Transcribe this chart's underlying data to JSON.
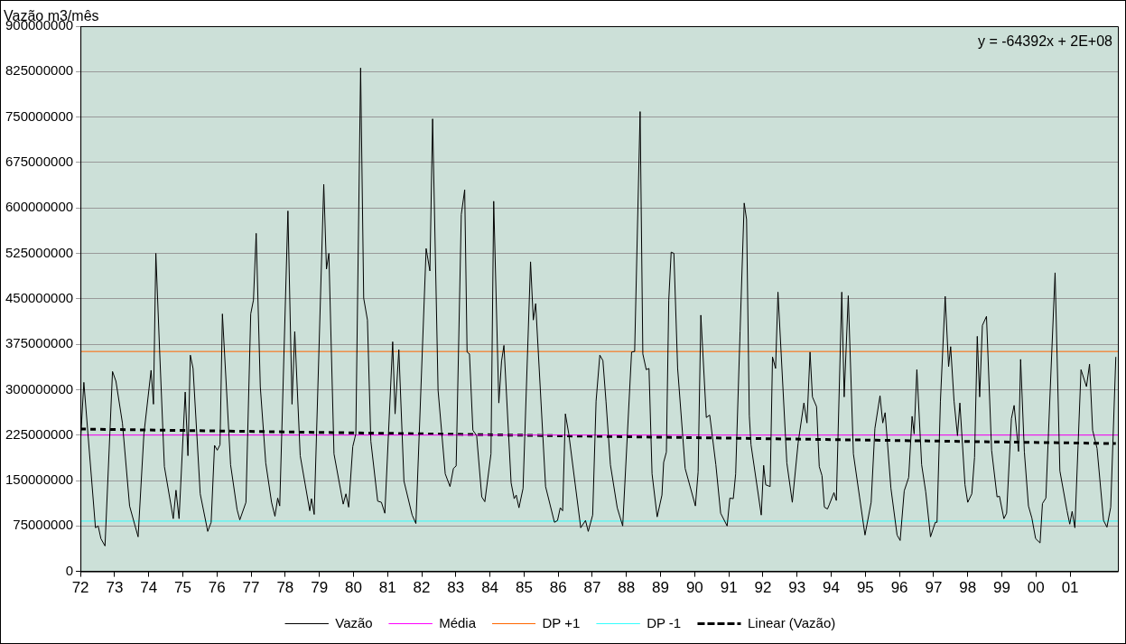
{
  "chart_data": {
    "type": "line",
    "ylabel": "Vazão m3/mês",
    "annotations": [
      "y = -64392x + 2E+08"
    ],
    "xlim": [
      1972,
      2002.4
    ],
    "ylim": [
      0,
      900000000
    ],
    "xticks": [
      {
        "value": 1972,
        "label": "72"
      },
      {
        "value": 1973,
        "label": "73"
      },
      {
        "value": 1974,
        "label": "74"
      },
      {
        "value": 1975,
        "label": "75"
      },
      {
        "value": 1976,
        "label": "76"
      },
      {
        "value": 1977,
        "label": "77"
      },
      {
        "value": 1978,
        "label": "78"
      },
      {
        "value": 1979,
        "label": "79"
      },
      {
        "value": 1980,
        "label": "80"
      },
      {
        "value": 1981,
        "label": "81"
      },
      {
        "value": 1982,
        "label": "82"
      },
      {
        "value": 1983,
        "label": "83"
      },
      {
        "value": 1984,
        "label": "84"
      },
      {
        "value": 1985,
        "label": "85"
      },
      {
        "value": 1986,
        "label": "86"
      },
      {
        "value": 1987,
        "label": "87"
      },
      {
        "value": 1988,
        "label": "88"
      },
      {
        "value": 1989,
        "label": "89"
      },
      {
        "value": 1990,
        "label": "90"
      },
      {
        "value": 1991,
        "label": "91"
      },
      {
        "value": 1992,
        "label": "92"
      },
      {
        "value": 1993,
        "label": "93"
      },
      {
        "value": 1994,
        "label": "94"
      },
      {
        "value": 1995,
        "label": "95"
      },
      {
        "value": 1996,
        "label": "96"
      },
      {
        "value": 1997,
        "label": "97"
      },
      {
        "value": 1998,
        "label": "98"
      },
      {
        "value": 1999,
        "label": "99"
      },
      {
        "value": 2000,
        "label": "00"
      },
      {
        "value": 2001,
        "label": "01"
      }
    ],
    "yticks": [
      0,
      75000000,
      150000000,
      225000000,
      300000000,
      375000000,
      450000000,
      525000000,
      600000000,
      675000000,
      750000000,
      825000000,
      900000000
    ],
    "grid": "y",
    "legend": "bottom",
    "series": [
      {
        "name": "Vazão",
        "color": "#000000",
        "line_style": "solid",
        "x": [
          1972.0,
          1972.1,
          1972.44,
          1972.52,
          1972.6,
          1972.72,
          1972.94,
          1973.04,
          1973.23,
          1973.44,
          1973.69,
          1973.86,
          1974.07,
          1974.14,
          1974.21,
          1974.32,
          1974.46,
          1974.72,
          1974.8,
          1974.89,
          1975.07,
          1975.15,
          1975.22,
          1975.3,
          1975.51,
          1975.73,
          1975.83,
          1975.93,
          1976.01,
          1976.09,
          1976.16,
          1976.4,
          1976.59,
          1976.67,
          1976.85,
          1976.99,
          1977.07,
          1977.15,
          1977.27,
          1977.43,
          1977.6,
          1977.7,
          1977.78,
          1977.84,
          1978.08,
          1978.2,
          1978.28,
          1978.44,
          1978.72,
          1978.77,
          1978.85,
          1979.13,
          1979.21,
          1979.28,
          1979.43,
          1979.7,
          1979.78,
          1979.86,
          1979.98,
          1980.07,
          1980.21,
          1980.3,
          1980.41,
          1980.51,
          1980.71,
          1980.82,
          1980.92,
          1981.15,
          1981.22,
          1981.33,
          1981.48,
          1981.72,
          1981.83,
          1982.13,
          1982.24,
          1982.32,
          1982.48,
          1982.69,
          1982.83,
          1982.93,
          1983.01,
          1983.16,
          1983.26,
          1983.33,
          1983.4,
          1983.5,
          1983.61,
          1983.76,
          1983.85,
          1984.03,
          1984.11,
          1984.26,
          1984.34,
          1984.41,
          1984.62,
          1984.71,
          1984.77,
          1984.85,
          1984.97,
          1985.19,
          1985.27,
          1985.34,
          1985.63,
          1985.89,
          1985.98,
          1986.06,
          1986.13,
          1986.21,
          1986.31,
          1986.66,
          1986.8,
          1986.88,
          1987.01,
          1987.11,
          1987.22,
          1987.31,
          1987.4,
          1987.53,
          1987.73,
          1987.89,
          1988.15,
          1988.24,
          1988.4,
          1988.48,
          1988.58,
          1988.66,
          1988.75,
          1988.9,
          1989.04,
          1989.09,
          1989.17,
          1989.24,
          1989.31,
          1989.39,
          1989.5,
          1989.72,
          1990.02,
          1990.1,
          1990.18,
          1990.34,
          1990.44,
          1990.62,
          1990.76,
          1990.95,
          1991.03,
          1991.13,
          1991.2,
          1991.33,
          1991.45,
          1991.52,
          1991.6,
          1991.65,
          1991.95,
          1992.02,
          1992.08,
          1992.21,
          1992.28,
          1992.37,
          1992.44,
          1992.7,
          1992.86,
          1993.03,
          1993.2,
          1993.29,
          1993.38,
          1993.45,
          1993.57,
          1993.65,
          1993.73,
          1993.8,
          1993.89,
          1993.95,
          1994.08,
          1994.15,
          1994.31,
          1994.38,
          1994.5,
          1994.65,
          1994.83,
          1994.99,
          1995.17,
          1995.28,
          1995.43,
          1995.51,
          1995.58,
          1995.75,
          1995.93,
          1996.02,
          1996.14,
          1996.27,
          1996.37,
          1996.43,
          1996.51,
          1996.65,
          1996.77,
          1996.91,
          1997.05,
          1997.1,
          1997.2,
          1997.34,
          1997.44,
          1997.5,
          1997.6,
          1997.7,
          1997.77,
          1997.92,
          1998.0,
          1998.12,
          1998.2,
          1998.28,
          1998.35,
          1998.43,
          1998.55,
          1998.7,
          1998.86,
          1998.93,
          1999.06,
          1999.14,
          1999.28,
          1999.36,
          1999.49,
          1999.55,
          1999.66,
          1999.78,
          1999.88,
          1999.99,
          2000.12,
          2000.19,
          2000.29,
          2000.43,
          2000.56,
          2000.7,
          2000.91,
          2000.99,
          2001.06,
          2001.14,
          2001.32,
          2001.48,
          2001.57,
          2001.66,
          2001.79,
          2001.98,
          2002.08,
          2002.19,
          2002.34
        ],
        "values": [
          212000000,
          312000000,
          72000000,
          75000000,
          54000000,
          42000000,
          330000000,
          314000000,
          245000000,
          108000000,
          57000000,
          227000000,
          332000000,
          276000000,
          525000000,
          365000000,
          173000000,
          87000000,
          134000000,
          87000000,
          296000000,
          191000000,
          357000000,
          335000000,
          128000000,
          66000000,
          81000000,
          208000000,
          200000000,
          209000000,
          425000000,
          176000000,
          102000000,
          85000000,
          114000000,
          425000000,
          448000000,
          558000000,
          305000000,
          179000000,
          114000000,
          91000000,
          121000000,
          108000000,
          595000000,
          276000000,
          396000000,
          191000000,
          100000000,
          120000000,
          94000000,
          639000000,
          499000000,
          525000000,
          194000000,
          111000000,
          128000000,
          106000000,
          206000000,
          227000000,
          831000000,
          451000000,
          415000000,
          215000000,
          116000000,
          114000000,
          96000000,
          379000000,
          260000000,
          366000000,
          149000000,
          93000000,
          79000000,
          533000000,
          496000000,
          747000000,
          299000000,
          161000000,
          140000000,
          170000000,
          174000000,
          589000000,
          630000000,
          362000000,
          359000000,
          233000000,
          224000000,
          123000000,
          115000000,
          194000000,
          611000000,
          278000000,
          347000000,
          373000000,
          146000000,
          120000000,
          126000000,
          105000000,
          137000000,
          511000000,
          415000000,
          442000000,
          140000000,
          81000000,
          84000000,
          105000000,
          100000000,
          260000000,
          227000000,
          72000000,
          84000000,
          66000000,
          93000000,
          281000000,
          357000000,
          348000000,
          281000000,
          176000000,
          105000000,
          75000000,
          362000000,
          363000000,
          759000000,
          359000000,
          333000000,
          335000000,
          161000000,
          90000000,
          126000000,
          180000000,
          197000000,
          448000000,
          527000000,
          525000000,
          335000000,
          170000000,
          108000000,
          164000000,
          423000000,
          254000000,
          258000000,
          176000000,
          96000000,
          75000000,
          121000000,
          120000000,
          161000000,
          397000000,
          608000000,
          581000000,
          257000000,
          209000000,
          93000000,
          175000000,
          143000000,
          140000000,
          354000000,
          335000000,
          461000000,
          179000000,
          114000000,
          212000000,
          278000000,
          245000000,
          362000000,
          288000000,
          272000000,
          173000000,
          158000000,
          106000000,
          103000000,
          111000000,
          130000000,
          117000000,
          461000000,
          288000000,
          455000000,
          194000000,
          123000000,
          60000000,
          114000000,
          236000000,
          290000000,
          245000000,
          262000000,
          137000000,
          60000000,
          51000000,
          133000000,
          155000000,
          256000000,
          227000000,
          333000000,
          176000000,
          131000000,
          57000000,
          81000000,
          81000000,
          281000000,
          454000000,
          338000000,
          371000000,
          281000000,
          224000000,
          278000000,
          143000000,
          114000000,
          128000000,
          188000000,
          388000000,
          288000000,
          406000000,
          421000000,
          200000000,
          123000000,
          124000000,
          87000000,
          96000000,
          252000000,
          274000000,
          198000000,
          350000000,
          197000000,
          108000000,
          88000000,
          54000000,
          47000000,
          112000000,
          121000000,
          317000000,
          493000000,
          166000000,
          100000000,
          78000000,
          99000000,
          72000000,
          333000000,
          305000000,
          342000000,
          233000000,
          203000000,
          84000000,
          73000000,
          106000000,
          354000000
        ]
      },
      {
        "name": "Média",
        "color": "#ff00ff",
        "line_style": "solid",
        "x": [
          1972,
          2002.4
        ],
        "values": [
          225000000,
          225000000
        ]
      },
      {
        "name": "DP +1",
        "color": "#ff6600",
        "line_style": "solid",
        "x": [
          1972,
          2002.4
        ],
        "values": [
          363000000,
          363000000
        ]
      },
      {
        "name": "DP -1",
        "color": "#33ffff",
        "line_style": "solid",
        "x": [
          1972,
          2002.4
        ],
        "values": [
          83000000,
          83000000
        ]
      },
      {
        "name": "Linear (Vazão)",
        "color": "#000000",
        "line_style": "dashed",
        "x": [
          1972,
          2002.34
        ],
        "values": [
          235000000,
          211000000
        ]
      }
    ]
  }
}
